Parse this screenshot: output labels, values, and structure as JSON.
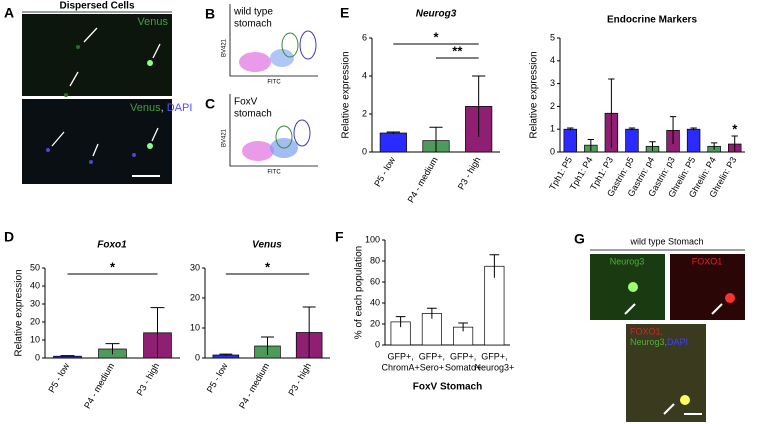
{
  "panels": {
    "letters": [
      "A",
      "B",
      "C",
      "D",
      "E",
      "F",
      "G"
    ],
    "A": {
      "title": "Dispersed Cells",
      "top": "Venus",
      "bottom_1": "Venus",
      "bottom_2": ", ",
      "bottom_3": "DAPI"
    },
    "B": {
      "title_1": "wild type",
      "title_2": "stomach",
      "y": "BV421",
      "x": "FITC"
    },
    "C": {
      "title_1": "FoxV",
      "title_2": "stomach",
      "y": "BV421",
      "x": "FITC"
    },
    "G": {
      "title": "wild type Stomach",
      "green": "Neurog3",
      "red": "FOXO1",
      "merge_1": "FOXO1,",
      "merge_2": "Neurog3,",
      "merge_3": "DAPI"
    }
  },
  "chart_data": [
    {
      "type": "bar",
      "title": "Neurog3",
      "ylabel": "Relative expression",
      "categories": [
        "P5 - low",
        "P4 - medium",
        "P3 - high"
      ],
      "values": [
        1,
        0.6,
        2.4
      ],
      "errors": [
        0.05,
        0.7,
        1.6
      ],
      "colors": [
        "#2b2bff",
        "#4e9a5a",
        "#8e1f72"
      ],
      "ylim": [
        0,
        6
      ],
      "yticks": [
        0,
        2,
        4,
        6
      ],
      "significance": [
        {
          "label": "*",
          "from": 0,
          "to": 2
        },
        {
          "label": "**",
          "from": 1,
          "to": 2
        }
      ]
    },
    {
      "type": "bar",
      "title": "Endocrine Markers",
      "ylabel": "Relative expression",
      "categories": [
        "Tph1: P5",
        "Tph1: P4",
        "Tph1: P3",
        "Gastrin: p5",
        "Gastrin: p4",
        "Gastrin: p3",
        "Ghrelin: P5",
        "Ghrelin: P4",
        "Ghrelin: P3"
      ],
      "values": [
        1,
        0.3,
        1.7,
        1,
        0.25,
        0.95,
        1,
        0.25,
        0.35
      ],
      "errors": [
        0.05,
        0.25,
        1.5,
        0.05,
        0.2,
        0.6,
        0.05,
        0.15,
        0.35
      ],
      "colors": [
        "#2b2bff",
        "#4e9a5a",
        "#8e1f72",
        "#2b2bff",
        "#4e9a5a",
        "#8e1f72",
        "#2b2bff",
        "#4e9a5a",
        "#8e1f72"
      ],
      "ylim": [
        0,
        5
      ],
      "yticks": [
        0,
        1,
        2,
        3,
        4,
        5
      ],
      "significance": [
        {
          "label": "*",
          "from": 8,
          "to": 8
        }
      ]
    },
    {
      "type": "bar",
      "title": "Foxo1",
      "ylabel": "Relative expression",
      "categories": [
        "P5 - low",
        "P4 - medium",
        "P3 - high"
      ],
      "values": [
        1,
        5,
        14
      ],
      "errors": [
        0.3,
        3,
        14
      ],
      "colors": [
        "#2b2bff",
        "#4e9a5a",
        "#8e1f72"
      ],
      "ylim": [
        0,
        50
      ],
      "yticks": [
        0,
        10,
        20,
        30,
        40,
        50
      ],
      "significance": [
        {
          "label": "*",
          "from": 0,
          "to": 2
        }
      ]
    },
    {
      "type": "bar",
      "title": "Venus",
      "categories": [
        "P5 - low",
        "P4 - medium",
        "P3 - high"
      ],
      "values": [
        1,
        4,
        8.5
      ],
      "errors": [
        0.3,
        3,
        8.5
      ],
      "colors": [
        "#2b2bff",
        "#4e9a5a",
        "#8e1f72"
      ],
      "ylim": [
        0,
        30
      ],
      "yticks": [
        0,
        10,
        20,
        30
      ],
      "significance": [
        {
          "label": "*",
          "from": 0,
          "to": 2
        }
      ]
    },
    {
      "type": "bar",
      "ylabel": "% of each population",
      "xlabel": "FoxV Stomach",
      "categories": [
        [
          "GFP+,",
          "ChromA+"
        ],
        [
          "GFP+,",
          "Sero+"
        ],
        [
          "GFP+,",
          "Somato+"
        ],
        [
          "GFP+,",
          "Neurog3+"
        ]
      ],
      "values": [
        22,
        30,
        17,
        75
      ],
      "errors": [
        5,
        5,
        4,
        11
      ],
      "colors": [
        "#ffffff",
        "#ffffff",
        "#ffffff",
        "#ffffff"
      ],
      "ylim": [
        0,
        100
      ],
      "yticks": [
        0,
        20,
        40,
        60,
        80,
        100
      ]
    }
  ]
}
